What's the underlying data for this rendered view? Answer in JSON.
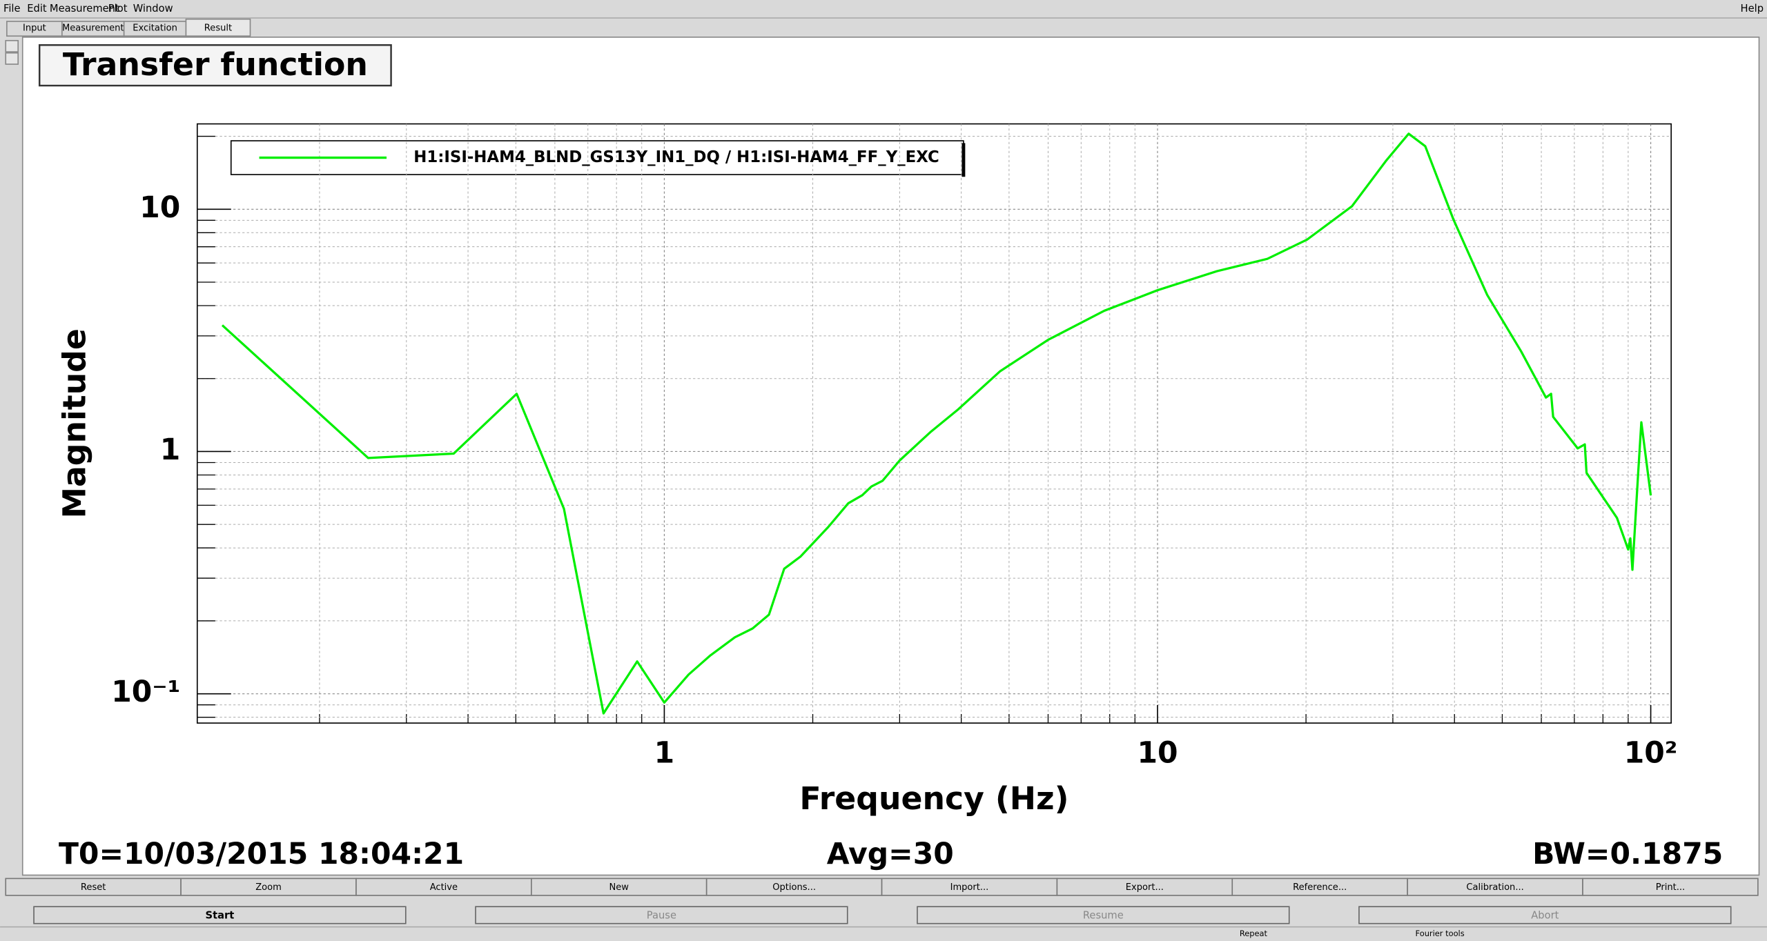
{
  "menu": {
    "items": [
      "File",
      "Edit",
      "Measurement",
      "Plot",
      "Window"
    ],
    "help": "Help"
  },
  "tabs": [
    "Input",
    "Measurement",
    "Excitation",
    "Result"
  ],
  "chart_data": {
    "type": "line",
    "title": "Transfer function",
    "xlabel": "Frequency (Hz)",
    "ylabel": "Magnitude",
    "xscale": "log",
    "yscale": "log",
    "grid": true,
    "legend": "top-left",
    "x": [
      0.127,
      0.251,
      0.374,
      0.502,
      0.626,
      0.753,
      0.881,
      1.0,
      1.12,
      1.24,
      1.39,
      1.51,
      1.63,
      1.75,
      1.89,
      2.15,
      2.36,
      2.52,
      2.63,
      2.77,
      3.0,
      3.46,
      3.94,
      4.79,
      6.0,
      7.8,
      10,
      13.2,
      16.7,
      20.1,
      24.8,
      29.1,
      32.3,
      34.9,
      39.8,
      46.6,
      54.6,
      61.3,
      62.8,
      63.4,
      71.1,
      73.5,
      74.1,
      85.4,
      90.0,
      90.9,
      91.8,
      94.3,
      95.7,
      100
    ],
    "series": [
      {
        "name": "H1:ISI-HAM4_BLND_GS13Y_IN1_DQ / H1:ISI-HAM4_FF_Y_EXC",
        "color": "#00ee00",
        "values": [
          3.32,
          0.94,
          0.98,
          1.73,
          0.58,
          0.083,
          0.136,
          0.092,
          0.12,
          0.144,
          0.171,
          0.186,
          0.212,
          0.328,
          0.369,
          0.488,
          0.611,
          0.66,
          0.717,
          0.757,
          0.918,
          1.2,
          1.49,
          2.14,
          2.89,
          3.81,
          4.63,
          5.55,
          6.24,
          7.49,
          10.3,
          15.9,
          20.5,
          18.2,
          9.08,
          4.43,
          2.59,
          1.67,
          1.73,
          1.39,
          1.03,
          1.07,
          0.816,
          0.532,
          0.394,
          0.438,
          0.325,
          0.816,
          1.32,
          0.659
        ]
      }
    ],
    "xlim": [
      0.113,
      110
    ],
    "ylim": [
      0.0757,
      22.5
    ],
    "xticks": [
      1,
      10,
      {
        "value": 100,
        "label": "10²"
      }
    ],
    "yticks": [
      {
        "value": 0.1,
        "label": "10⁻¹"
      },
      1,
      10
    ],
    "xminorticks": [
      0.2,
      0.3,
      0.4,
      0.5,
      0.6,
      0.7,
      0.8,
      0.9,
      2,
      3,
      4,
      5,
      6,
      7,
      8,
      9,
      20,
      30,
      40,
      50,
      60,
      70,
      80,
      90
    ],
    "yminorticks": [
      0.08,
      0.09,
      0.2,
      0.3,
      0.4,
      0.5,
      0.6,
      0.7,
      0.8,
      0.9,
      2,
      3,
      4,
      5,
      6,
      7,
      8,
      9,
      20
    ]
  },
  "footer": {
    "t0": "T0=10/03/2015 18:04:21",
    "avg": "Avg=30",
    "bw": "BW=0.1875"
  },
  "buttons": [
    "Reset",
    "Zoom",
    "Active",
    "New",
    "Options...",
    "Import...",
    "Export...",
    "Reference...",
    "Calibration...",
    "Print..."
  ],
  "controls": [
    "Start",
    "Pause",
    "Resume",
    "Abort"
  ],
  "status": [
    "Repeat",
    "Fourier tools"
  ]
}
